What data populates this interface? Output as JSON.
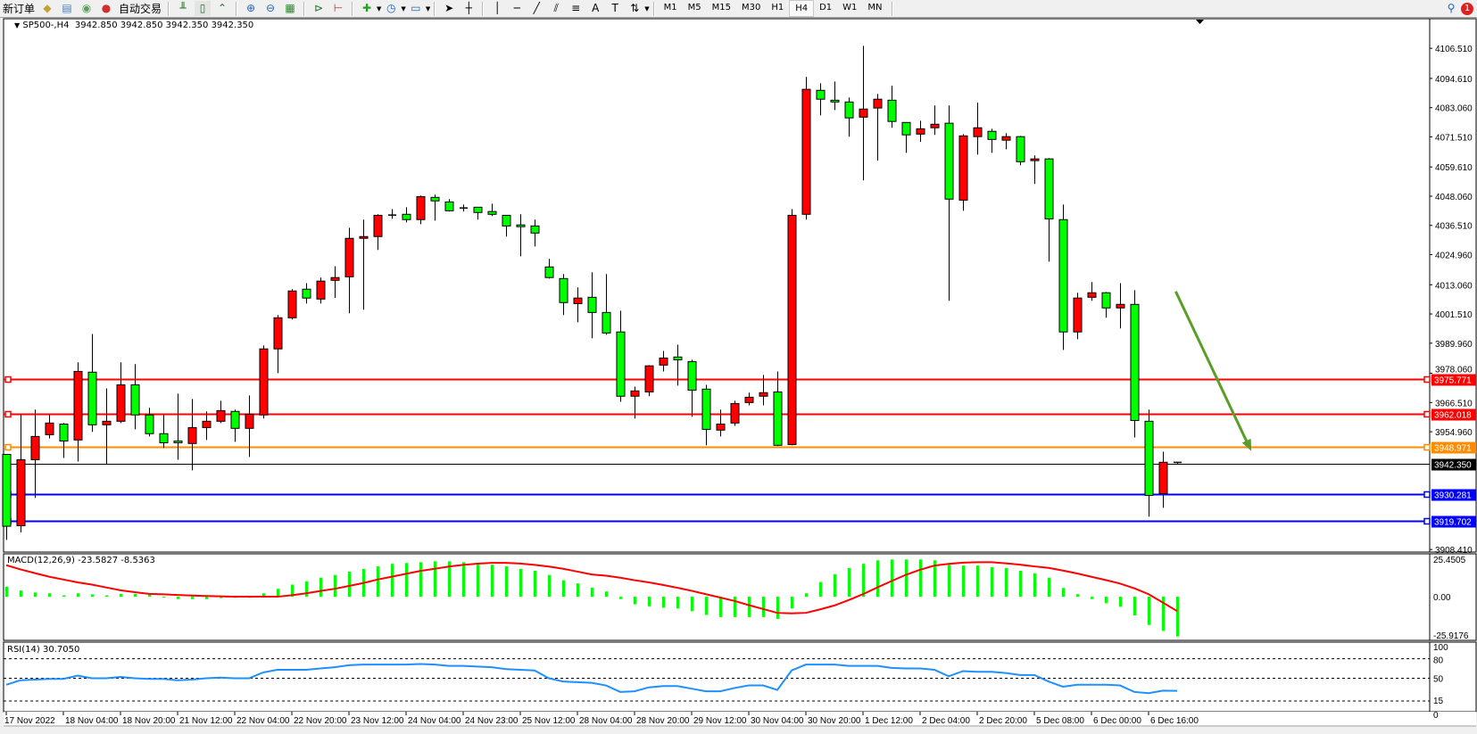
{
  "toolbar": {
    "new_order_label": "新订单",
    "auto_trading_label": "自动交易",
    "icons": [
      "new-order-icon",
      "market-watch-icon",
      "data-window-icon",
      "navigator-icon",
      "auto-trading-icon",
      "bar-chart-icon",
      "candlestick-icon",
      "line-chart-icon",
      "zoom-in-icon",
      "zoom-out-icon",
      "tile-windows-icon",
      "auto-scroll-icon",
      "chart-shift-icon",
      "indicators-icon",
      "periods-icon",
      "templates-icon",
      "cursor-icon",
      "crosshair-icon",
      "vertical-line-icon",
      "horizontal-line-icon",
      "trendline-icon",
      "equidistant-channel-icon",
      "fibonacci-icon",
      "text-icon",
      "text-label-icon",
      "arrows-icon"
    ],
    "text_tool_label": "A",
    "timeframes": [
      "M1",
      "M5",
      "M15",
      "M30",
      "H1",
      "H4",
      "D1",
      "W1",
      "MN"
    ],
    "active_timeframe": "H4",
    "notification_count": "1"
  },
  "chart_header": {
    "symbol": "SP500-,H4",
    "open": "3942.850",
    "high": "3942.850",
    "low": "3942.350",
    "close": "3942.350"
  },
  "chart_data": [
    {
      "type": "candlestick",
      "title": "SP500-,H4",
      "bull_color": "#ff0000",
      "bear_color": "#00ff00",
      "ylim": [
        3907.4,
        4118.2
      ],
      "grid": false,
      "price_axis_labels": [
        "4106.510",
        "4094.610",
        "4083.060",
        "4071.510",
        "4059.610",
        "4048.060",
        "4036.510",
        "4024.960",
        "4013.060",
        "4001.510",
        "3989.960",
        "3978.060",
        "3966.510",
        "3954.960",
        "3908.410"
      ],
      "time_labels": [
        "17 Nov 2022",
        "18 Nov 04:00",
        "18 Nov 20:00",
        "21 Nov 12:00",
        "22 Nov 04:00",
        "22 Nov 20:00",
        "23 Nov 12:00",
        "24 Nov 04:00",
        "24 Nov 23:00",
        "25 Nov 12:00",
        "28 Nov 04:00",
        "28 Nov 20:00",
        "29 Nov 12:00",
        "30 Nov 04:00",
        "30 Nov 20:00",
        "1 Dec 12:00",
        "2 Dec 04:00",
        "2 Dec 20:00",
        "5 Dec 08:00",
        "6 Dec 00:00",
        "6 Dec 16:00"
      ],
      "ohlc": [
        [
          3946.0,
          3946.0,
          3912.2,
          3917.6
        ],
        [
          3917.8,
          3961.9,
          3915.2,
          3943.9
        ],
        [
          3943.9,
          3963.7,
          3928.8,
          3953.1
        ],
        [
          3953.8,
          3961.6,
          3952.3,
          3958.4
        ],
        [
          3958.0,
          3958.4,
          3944.6,
          3951.3
        ],
        [
          3951.7,
          3982.4,
          3943.2,
          3978.8
        ],
        [
          3978.5,
          3993.6,
          3954.9,
          3957.7
        ],
        [
          3957.7,
          3972.1,
          3942.2,
          3959.1
        ],
        [
          3959.1,
          3982.4,
          3958.4,
          3973.5
        ],
        [
          3973.5,
          3981.7,
          3955.9,
          3961.6
        ],
        [
          3961.6,
          3964.4,
          3953.1,
          3954.2
        ],
        [
          3954.2,
          3961.6,
          3948.5,
          3950.6
        ],
        [
          3951.3,
          3970.0,
          3943.9,
          3950.6
        ],
        [
          3950.3,
          3967.9,
          3939.7,
          3956.6
        ],
        [
          3956.6,
          3963.0,
          3951.7,
          3959.1
        ],
        [
          3959.1,
          3967.2,
          3958.4,
          3963.3
        ],
        [
          3963.0,
          3963.7,
          3951.0,
          3956.3
        ],
        [
          3956.3,
          3969.3,
          3945.0,
          3961.9
        ],
        [
          3961.6,
          3989.1,
          3960.2,
          3987.7
        ],
        [
          3987.7,
          4001.1,
          3978.1,
          4000.0
        ],
        [
          4000.0,
          4011.3,
          3999.3,
          4010.6
        ],
        [
          4011.3,
          4013.7,
          4005.6,
          4007.8
        ],
        [
          4007.4,
          4015.9,
          4005.6,
          4014.5
        ],
        [
          4014.8,
          4020.4,
          4007.8,
          4015.9
        ],
        [
          4016.2,
          4035.6,
          4001.8,
          4031.4
        ],
        [
          4031.4,
          4038.8,
          4003.2,
          4032.1
        ],
        [
          4032.1,
          4040.9,
          4026.8,
          4040.5
        ],
        [
          4040.5,
          4043.0,
          4039.1,
          4040.6
        ],
        [
          4040.9,
          4043.7,
          4037.7,
          4038.8
        ],
        [
          4038.8,
          4048.3,
          4037.0,
          4047.9
        ],
        [
          4047.6,
          4048.7,
          4038.4,
          4046.2
        ],
        [
          4045.8,
          4046.9,
          4042.0,
          4042.3
        ],
        [
          4043.4,
          4044.8,
          4042.0,
          4043.4
        ],
        [
          4043.7,
          4043.7,
          4038.8,
          4041.6
        ],
        [
          4042.0,
          4045.1,
          4040.2,
          4040.9
        ],
        [
          4040.5,
          4040.5,
          4032.1,
          4036.3
        ],
        [
          4036.7,
          4040.9,
          4024.3,
          4036.0
        ],
        [
          4036.3,
          4038.8,
          4028.2,
          4033.5
        ],
        [
          4020.1,
          4023.3,
          4015.5,
          4015.9
        ],
        [
          4015.5,
          4017.3,
          4001.1,
          4006.0
        ],
        [
          4005.6,
          4012.0,
          3998.2,
          4007.8
        ],
        [
          4008.1,
          4018.0,
          3991.9,
          4002.1
        ],
        [
          4002.1,
          4017.3,
          3993.3,
          3994.0
        ],
        [
          3994.4,
          4002.8,
          3966.8,
          3969.0
        ],
        [
          3969.0,
          3972.8,
          3960.2,
          3971.1
        ],
        [
          3970.7,
          3981.3,
          3969.0,
          3981.0
        ],
        [
          3981.3,
          3986.9,
          3978.8,
          3984.1
        ],
        [
          3984.5,
          3989.4,
          3973.2,
          3983.4
        ],
        [
          3982.7,
          3983.4,
          3960.9,
          3971.4
        ],
        [
          3971.8,
          3973.5,
          3949.6,
          3955.9
        ],
        [
          3955.6,
          3963.7,
          3953.1,
          3958.0
        ],
        [
          3958.4,
          3967.2,
          3957.3,
          3966.1
        ],
        [
          3966.5,
          3970.4,
          3965.4,
          3968.6
        ],
        [
          3969.0,
          3977.4,
          3965.4,
          3970.4
        ],
        [
          3970.7,
          3978.8,
          3949.3,
          3949.6
        ],
        [
          3949.9,
          4043.0,
          3949.6,
          4040.5
        ],
        [
          4040.9,
          4095.2,
          4038.8,
          4090.3
        ],
        [
          4089.9,
          4092.7,
          4080.0,
          4086.4
        ],
        [
          4086.0,
          4093.4,
          4082.1,
          4085.3
        ],
        [
          4085.3,
          4087.1,
          4071.6,
          4079.0
        ],
        [
          4079.3,
          4107.5,
          4054.3,
          4082.5
        ],
        [
          4082.9,
          4088.5,
          4062.1,
          4086.4
        ],
        [
          4086.0,
          4091.7,
          4075.1,
          4077.6
        ],
        [
          4077.2,
          4077.2,
          4065.2,
          4072.3
        ],
        [
          4072.6,
          4077.9,
          4069.5,
          4074.7
        ],
        [
          4075.1,
          4083.9,
          4072.3,
          4076.5
        ],
        [
          4076.9,
          4083.9,
          4006.7,
          4046.9
        ],
        [
          4046.5,
          4072.6,
          4042.3,
          4071.9
        ],
        [
          4071.6,
          4085.0,
          4064.5,
          4075.1
        ],
        [
          4073.7,
          4074.7,
          4065.2,
          4070.5
        ],
        [
          4070.2,
          4073.0,
          4066.6,
          4071.6
        ],
        [
          4071.6,
          4071.9,
          4060.3,
          4061.7
        ],
        [
          4062.1,
          4064.2,
          4052.9,
          4062.8
        ],
        [
          4062.8,
          4063.1,
          4022.2,
          4039.1
        ],
        [
          4038.8,
          4044.8,
          3987.3,
          3994.4
        ],
        [
          3994.4,
          4009.9,
          3991.5,
          4007.8
        ],
        [
          4008.1,
          4014.1,
          4006.7,
          4009.9
        ],
        [
          4009.9,
          4010.2,
          4000.0,
          4003.9
        ],
        [
          4003.9,
          4013.7,
          3995.8,
          4005.3
        ],
        [
          4005.3,
          4010.9,
          3952.7,
          3959.4
        ],
        [
          3959.1,
          3963.7,
          3921.4,
          3929.8
        ],
        [
          3930.5,
          3947.1,
          3924.9,
          3942.9
        ],
        [
          3942.85,
          3942.85,
          3942.35,
          3942.35
        ]
      ],
      "horizontal_lines": [
        {
          "price": 3975.771,
          "label": "3975.771",
          "color": "#ff0000"
        },
        {
          "price": 3962.018,
          "label": "3962.018",
          "color": "#ff0000"
        },
        {
          "price": 3948.971,
          "label": "3948.971",
          "color": "#ff8c00"
        },
        {
          "price": 3930.281,
          "label": "3930.281",
          "color": "#0000ff"
        },
        {
          "price": 3919.702,
          "label": "3919.702",
          "color": "#0000ff"
        }
      ],
      "bid_line": {
        "price": 3942.35,
        "label": "3942.350",
        "color": "#000000"
      },
      "annotation_arrow": {
        "from": {
          "candle_index": 81.9,
          "price": 4010.4
        },
        "to": {
          "candle_index": 87.2,
          "price": 3947.3
        },
        "color": "#5a9e2a"
      }
    },
    {
      "type": "bar+line",
      "title": "MACD(12,26,9)",
      "main_value": "-23.5827",
      "signal_value": "-8.5363",
      "ylim": [
        -25.9176,
        25.4505
      ],
      "axis_labels": [
        "25.4505",
        "0.00",
        "-25.9176"
      ],
      "histogram_color": "#00ff00",
      "signal_color": "#ff0000",
      "histogram": [
        6.0,
        3.7,
        2.5,
        2.0,
        0.8,
        2.0,
        1.4,
        0.8,
        1.7,
        1.7,
        1.2,
        -0.5,
        -1.4,
        -1.4,
        -1.4,
        -0.8,
        -0.7,
        -0.7,
        2.0,
        4.7,
        7.2,
        9.2,
        11.3,
        12.9,
        14.9,
        16.5,
        18.0,
        19.5,
        20.0,
        20.5,
        21.0,
        21.0,
        20.5,
        19.5,
        19.0,
        18.0,
        16.5,
        15.4,
        12.9,
        9.8,
        7.9,
        5.3,
        3.1,
        -1.4,
        -4.5,
        -5.7,
        -6.5,
        -7.0,
        -8.6,
        -10.8,
        -12.1,
        -12.1,
        -12.1,
        -12.1,
        -13.2,
        -7.0,
        2.0,
        8.7,
        13.4,
        17.0,
        19.5,
        21.6,
        22.1,
        22.1,
        22.1,
        21.6,
        19.0,
        18.5,
        18.5,
        17.5,
        17.0,
        15.4,
        13.9,
        11.3,
        5.2,
        1.5,
        -1.4,
        -3.9,
        -6.0,
        -11.1,
        -16.8,
        -20.3,
        -23.58
      ],
      "signal": [
        18.7,
        16.2,
        14.0,
        11.9,
        10.2,
        8.5,
        7.2,
        5.5,
        3.8,
        2.7,
        1.7,
        1.4,
        1.0,
        0.7,
        0.4,
        0.2,
        0,
        0,
        0,
        0,
        0.9,
        2.0,
        3.4,
        4.7,
        6.4,
        8.1,
        10.2,
        11.9,
        13.6,
        15.3,
        16.6,
        17.9,
        18.9,
        19.6,
        20.1,
        20.1,
        19.7,
        18.9,
        17.9,
        16.6,
        14.9,
        13.2,
        12.5,
        11.3,
        9.8,
        8.5,
        7.0,
        5.3,
        3.5,
        1.5,
        -0.5,
        -2.5,
        -5.0,
        -7.3,
        -9.6,
        -9.9,
        -9.6,
        -7.5,
        -5.2,
        -2.0,
        1.5,
        5.5,
        9.3,
        13.0,
        16.0,
        18.5,
        19.5,
        20.2,
        20.5,
        20.5,
        19.8,
        19.0,
        18.0,
        17.1,
        15.5,
        13.8,
        11.8,
        9.9,
        7.8,
        5.0,
        1.5,
        -3.5,
        -8.54
      ]
    },
    {
      "type": "line",
      "title": "RSI(14)",
      "value": "30.7050",
      "ylim": [
        0,
        100
      ],
      "levels": [
        80,
        50,
        15
      ],
      "axis_labels": [
        "100",
        "80",
        "50",
        "15",
        "0"
      ],
      "color": "#1e90ff",
      "values": [
        40,
        47,
        48,
        49,
        49,
        54,
        50,
        50,
        52,
        50,
        49,
        49,
        47,
        48,
        50,
        51,
        50,
        50,
        59,
        63,
        63,
        63,
        65,
        67,
        70,
        71,
        71,
        71,
        71,
        72,
        71,
        69,
        69,
        68,
        67,
        64,
        63,
        62,
        50,
        45,
        44,
        43,
        39,
        29,
        30,
        36,
        38,
        38,
        34,
        30,
        30,
        35,
        39,
        39,
        32,
        62,
        71,
        71,
        71,
        69,
        69,
        69,
        66,
        65,
        65,
        63,
        53,
        61,
        60,
        60,
        58,
        55,
        55,
        45,
        37,
        40,
        40,
        40,
        39,
        29,
        27,
        31,
        30.7
      ]
    }
  ]
}
